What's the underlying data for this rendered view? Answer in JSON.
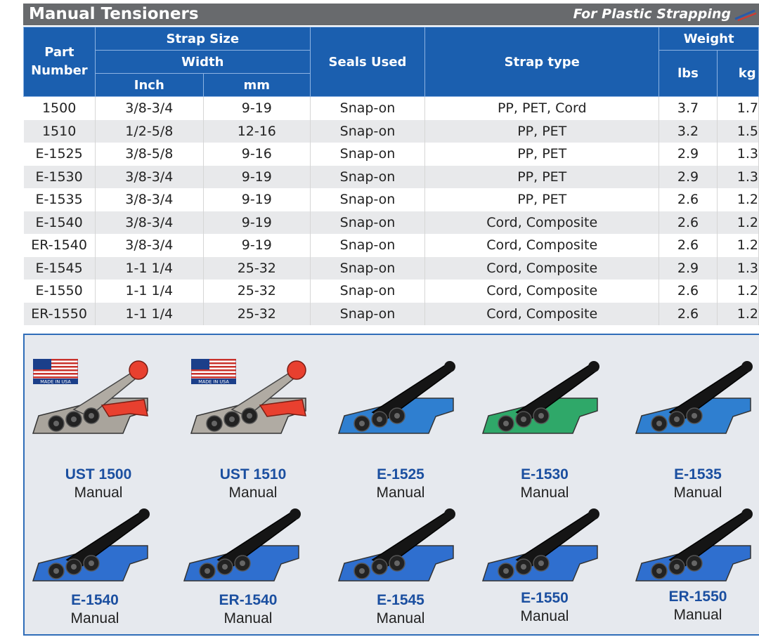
{
  "header": {
    "title": "Manual Tensioners",
    "subtitle": "For Plastic Strapping"
  },
  "table": {
    "headers": {
      "part_number": "Part Number",
      "strap_size": "Strap Size",
      "width": "Width",
      "inch": "Inch",
      "mm": "mm",
      "seals_used": "Seals Used",
      "strap_type": "Strap type",
      "weight": "Weight",
      "lbs": "lbs",
      "kg": "kg"
    },
    "rows": [
      {
        "part": "1500",
        "inch": "3/8-3/4",
        "mm": "9-19",
        "seals": "Snap-on",
        "strap": "PP, PET, Cord",
        "lbs": "3.7",
        "kg": "1.7"
      },
      {
        "part": "1510",
        "inch": "1/2-5/8",
        "mm": "12-16",
        "seals": "Snap-on",
        "strap": "PP, PET",
        "lbs": "3.2",
        "kg": "1.5"
      },
      {
        "part": "E-1525",
        "inch": "3/8-5/8",
        "mm": "9-16",
        "seals": "Snap-on",
        "strap": "PP, PET",
        "lbs": "2.9",
        "kg": "1.3"
      },
      {
        "part": "E-1530",
        "inch": "3/8-3/4",
        "mm": "9-19",
        "seals": "Snap-on",
        "strap": "PP, PET",
        "lbs": "2.9",
        "kg": "1.3"
      },
      {
        "part": "E-1535",
        "inch": "3/8-3/4",
        "mm": "9-19",
        "seals": "Snap-on",
        "strap": "PP, PET",
        "lbs": "2.6",
        "kg": "1.2"
      },
      {
        "part": "E-1540",
        "inch": "3/8-3/4",
        "mm": "9-19",
        "seals": "Snap-on",
        "strap": "Cord, Composite",
        "lbs": "2.6",
        "kg": "1.2"
      },
      {
        "part": "ER-1540",
        "inch": "3/8-3/4",
        "mm": "9-19",
        "seals": "Snap-on",
        "strap": "Cord, Composite",
        "lbs": "2.6",
        "kg": "1.2"
      },
      {
        "part": "E-1545",
        "inch": "1-1 1/4",
        "mm": "25-32",
        "seals": "Snap-on",
        "strap": "Cord, Composite",
        "lbs": "2.9",
        "kg": "1.3"
      },
      {
        "part": "E-1550",
        "inch": "1-1 1/4",
        "mm": "25-32",
        "seals": "Snap-on",
        "strap": "Cord, Composite",
        "lbs": "2.6",
        "kg": "1.2"
      },
      {
        "part": "ER-1550",
        "inch": "1-1 1/4",
        "mm": "25-32",
        "seals": "Snap-on",
        "strap": "Cord, Composite",
        "lbs": "2.6",
        "kg": "1.2"
      }
    ]
  },
  "made_in_usa_label": "MADE IN USA",
  "products": [
    {
      "model": "UST 1500",
      "type": "Manual",
      "body_color": "#a9a49c",
      "accent_color": "#e8402f",
      "flag": true
    },
    {
      "model": "UST 1510",
      "type": "Manual",
      "body_color": "#b0aba3",
      "accent_color": "#e8402f",
      "flag": true
    },
    {
      "model": "E-1525",
      "type": "Manual",
      "body_color": "#2f7fd0",
      "accent_color": "#151515",
      "flag": false
    },
    {
      "model": "E-1530",
      "type": "Manual",
      "body_color": "#2fa869",
      "accent_color": "#151515",
      "flag": false
    },
    {
      "model": "E-1535",
      "type": "Manual",
      "body_color": "#2f7fd0",
      "accent_color": "#151515",
      "flag": false
    },
    {
      "model": "E-1540",
      "type": "Manual",
      "body_color": "#2f6fcf",
      "accent_color": "#151515",
      "flag": false
    },
    {
      "model": "ER-1540",
      "type": "Manual",
      "body_color": "#2f6fcf",
      "accent_color": "#151515",
      "flag": false
    },
    {
      "model": "E-1545",
      "type": "Manual",
      "body_color": "#2f6fcf",
      "accent_color": "#151515",
      "flag": false
    },
    {
      "model": "E-1550",
      "type": "Manual",
      "body_color": "#2f6fcf",
      "accent_color": "#151515",
      "flag": false
    },
    {
      "model": "ER-1550",
      "type": "Manual",
      "body_color": "#2f6fcf",
      "accent_color": "#151515",
      "flag": false
    }
  ]
}
